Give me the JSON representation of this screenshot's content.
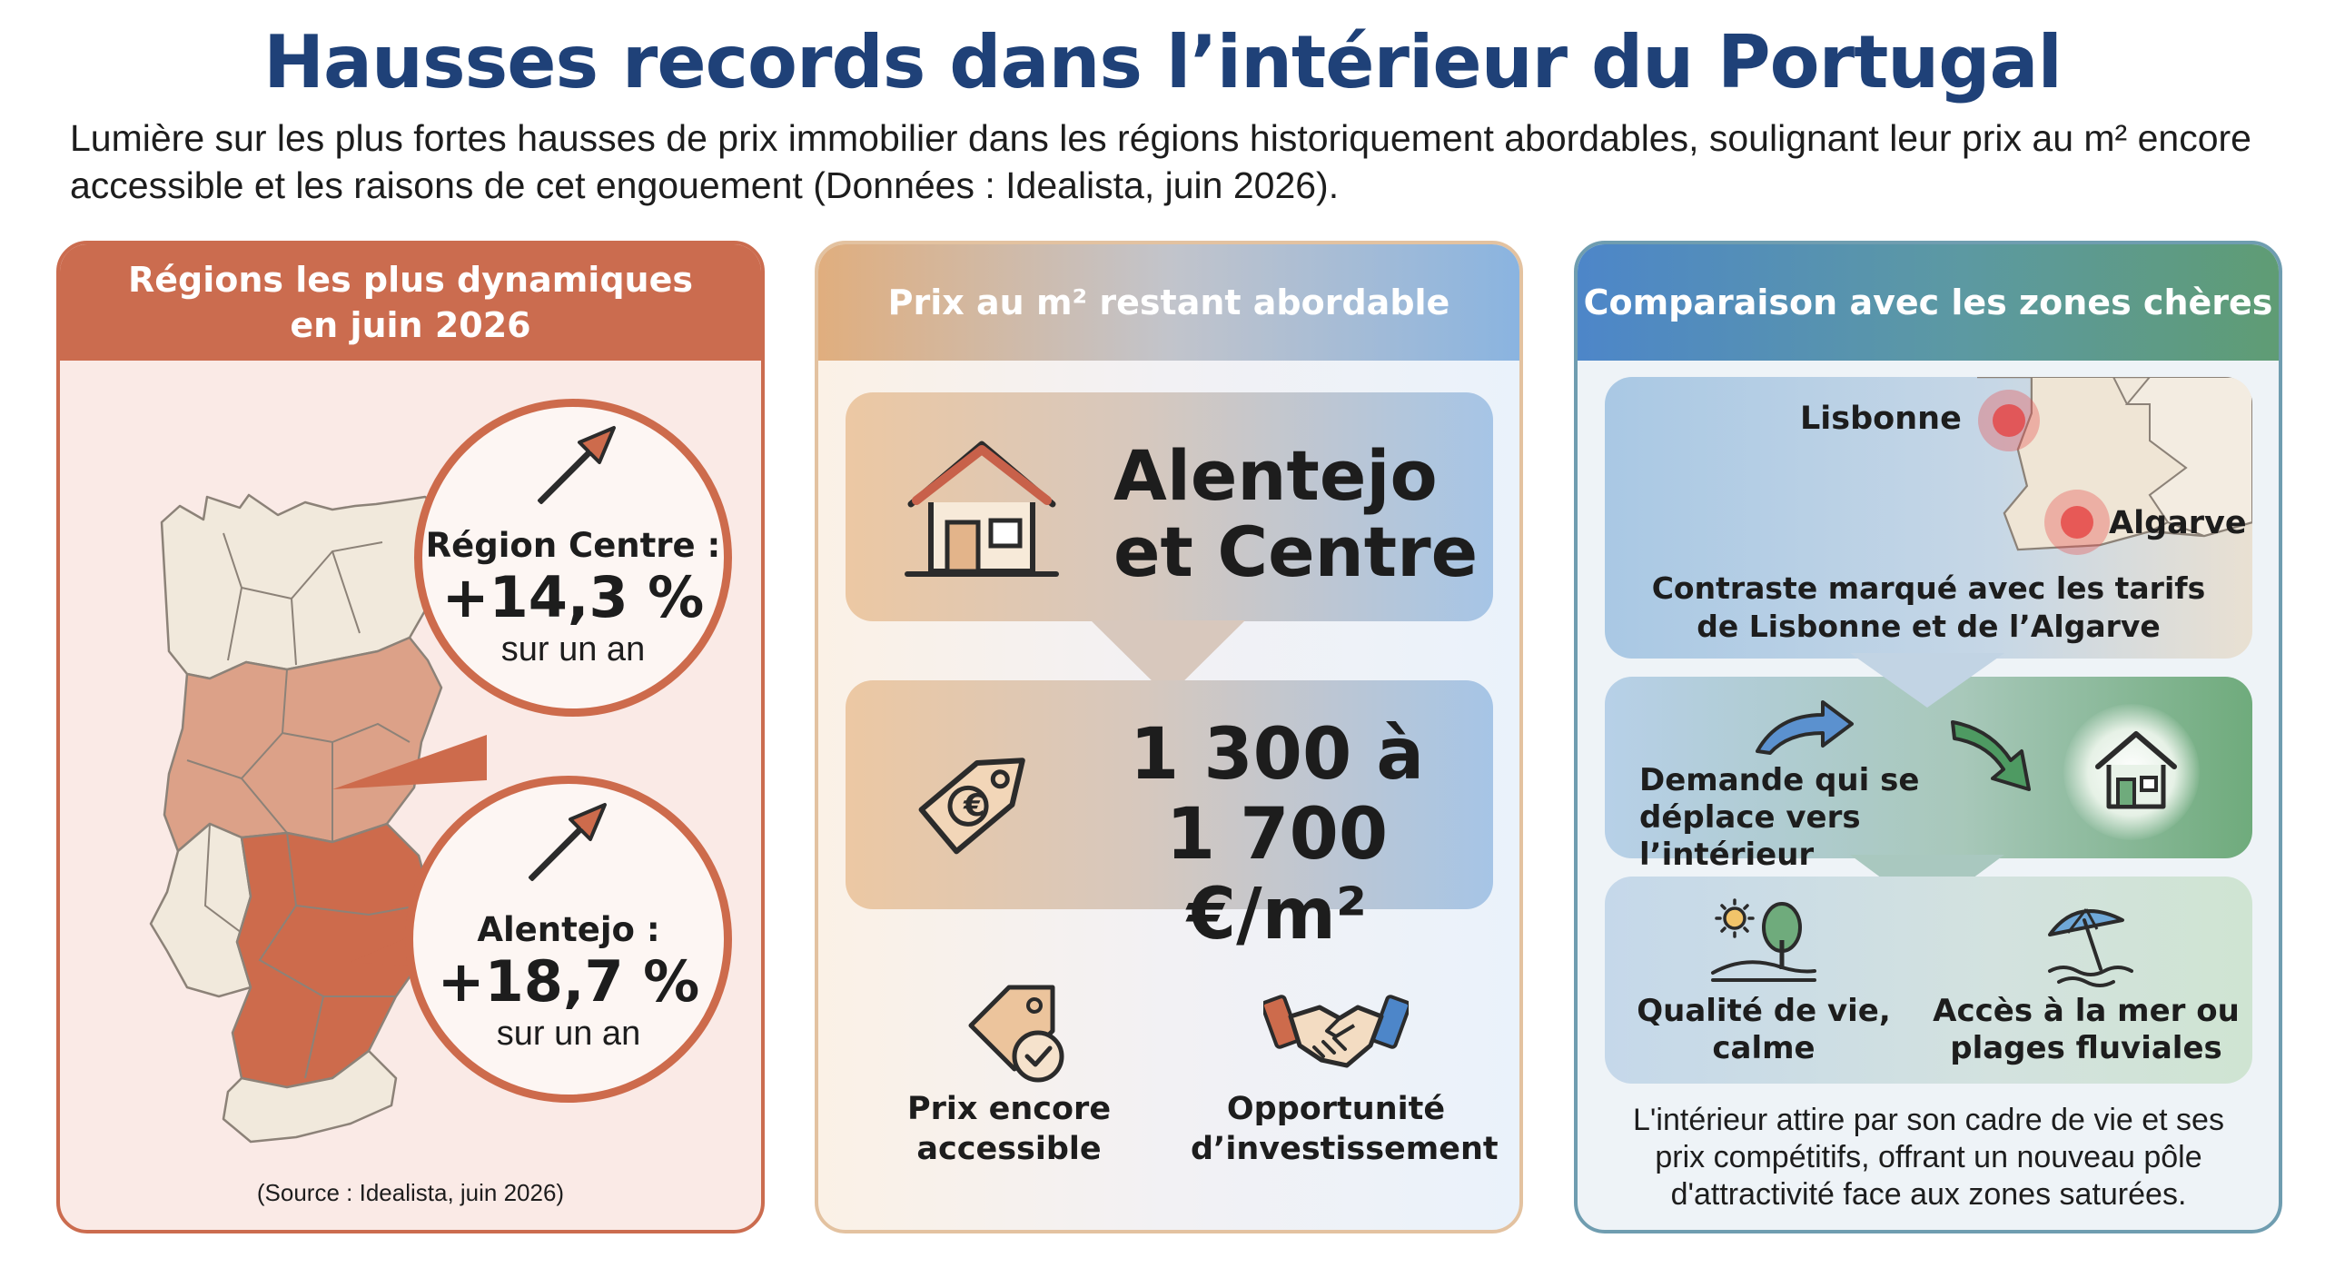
{
  "header": {
    "title": "Hausses records dans l’intérieur du Portugal",
    "subtitle": "Lumière sur les plus fortes hausses de prix immobilier dans les régions historiquement abordables, soulignant leur prix au m² encore accessible et les raisons de cet engouement (Données : Idealista, juin 2026)."
  },
  "panel_regions": {
    "title_line1": "Régions les plus dynamiques",
    "title_line2": "en juin 2026",
    "centre": {
      "label": "Région Centre :",
      "value": "+14,3 %",
      "period": "sur un an"
    },
    "alentejo": {
      "label": "Alentejo :",
      "value": "+18,7 %",
      "period": "sur un an"
    },
    "source": "(Source : Idealista, juin 2026)",
    "colors": {
      "accent": "#cb6c4f",
      "centre_fill": "#dca188",
      "alentejo_fill": "#cd6b4c",
      "other_fill": "#f1e9dc"
    }
  },
  "panel_price": {
    "title": "Prix au m² restant abordable",
    "regions_line1": "Alentejo",
    "regions_line2": "et Centre",
    "price_line1": "1 300 à",
    "price_line2": "1 700 €/m²",
    "features": [
      {
        "icon": "price-tag-check-icon",
        "line1": "Prix encore",
        "line2": "accessible"
      },
      {
        "icon": "handshake-icon",
        "line1": "Opportunité",
        "line2": "d’investissement"
      }
    ]
  },
  "panel_compare": {
    "title": "Comparaison avec les zones chères",
    "map_labels": {
      "lisbon": "Lisbonne",
      "algarve": "Algarve"
    },
    "contrast_line1": "Contraste marqué avec les tarifs",
    "contrast_line2": "de Lisbonne et de l’Algarve",
    "demand_line1": "Demande qui se",
    "demand_line2": "déplace vers l’intérieur",
    "benefits": [
      {
        "icon": "sun-tree-icon",
        "line1": "Qualité de vie,",
        "line2": "calme"
      },
      {
        "icon": "beach-umbrella-icon",
        "line1": "Accès à la mer ou",
        "line2": "plages fluviales"
      }
    ],
    "closing_line1": "L'intérieur attire par son cadre de vie et ses",
    "closing_line2": "prix compétitifs, offrant un nouveau pôle",
    "closing_line3": "d'attractivité face aux zones saturées."
  }
}
